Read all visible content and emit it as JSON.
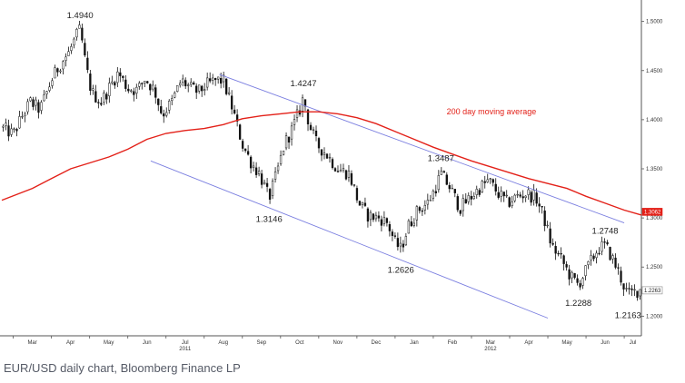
{
  "caption": "EUR/USD daily chart, Bloomberg Finance LP",
  "colors": {
    "ma": "#e32119",
    "channel": "#7b7fe0",
    "candle": "#111111",
    "axis": "#555555"
  },
  "chart_data": {
    "type": "candlestick",
    "title": "",
    "xlabel": "",
    "ylabel": "",
    "ylim": [
      1.18,
      1.52
    ],
    "y_ticks": [
      {
        "label": "1.5000",
        "value": 1.5
      },
      {
        "label": "1.4500",
        "value": 1.45
      },
      {
        "label": "1.4000",
        "value": 1.4
      },
      {
        "label": "1.3500",
        "value": 1.35
      },
      {
        "label": "1.3000",
        "value": 1.3
      },
      {
        "label": "1.2500",
        "value": 1.25
      },
      {
        "label": "1.2000",
        "value": 1.2
      }
    ],
    "x_ticks": [
      {
        "label": "Mar",
        "t": 0
      },
      {
        "label": "Apr",
        "t": 1
      },
      {
        "label": "May",
        "t": 2
      },
      {
        "label": "Jun",
        "t": 3
      },
      {
        "label": "Jul",
        "t": 4
      },
      {
        "label": "Aug",
        "t": 5
      },
      {
        "label": "Sep",
        "t": 6
      },
      {
        "label": "Oct",
        "t": 7
      },
      {
        "label": "Nov",
        "t": 8
      },
      {
        "label": "Dec",
        "t": 9
      },
      {
        "label": "Jan",
        "t": 10
      },
      {
        "label": "Feb",
        "t": 11
      },
      {
        "label": "Mar",
        "t": 12
      },
      {
        "label": "Apr",
        "t": 13
      },
      {
        "label": "May",
        "t": 14
      },
      {
        "label": "Jun",
        "t": 15
      },
      {
        "label": "Jul",
        "t": 16
      }
    ],
    "year_labels": [
      {
        "label": "2011",
        "t": 4.5
      },
      {
        "label": "2012",
        "t": 12.5
      }
    ],
    "xlim": [
      -0.3,
      16.45
    ],
    "price_path": [
      [
        -0.3,
        1.392
      ],
      [
        0.0,
        1.385
      ],
      [
        0.25,
        1.405
      ],
      [
        0.45,
        1.418
      ],
      [
        0.7,
        1.41
      ],
      [
        1.0,
        1.44
      ],
      [
        1.2,
        1.455
      ],
      [
        1.45,
        1.468
      ],
      [
        1.65,
        1.485
      ],
      [
        1.75,
        1.492
      ],
      [
        1.9,
        1.455
      ],
      [
        2.05,
        1.428
      ],
      [
        2.3,
        1.418
      ],
      [
        2.55,
        1.435
      ],
      [
        2.75,
        1.448
      ],
      [
        3.0,
        1.432
      ],
      [
        3.25,
        1.43
      ],
      [
        3.45,
        1.442
      ],
      [
        3.7,
        1.43
      ],
      [
        3.9,
        1.405
      ],
      [
        4.15,
        1.418
      ],
      [
        4.4,
        1.44
      ],
      [
        4.65,
        1.432
      ],
      [
        4.85,
        1.428
      ],
      [
        5.05,
        1.435
      ],
      [
        5.3,
        1.44
      ],
      [
        5.5,
        1.44
      ],
      [
        5.75,
        1.41
      ],
      [
        6.0,
        1.375
      ],
      [
        6.25,
        1.355
      ],
      [
        6.45,
        1.345
      ],
      [
        6.7,
        1.32
      ],
      [
        6.9,
        1.345
      ],
      [
        7.1,
        1.375
      ],
      [
        7.3,
        1.39
      ],
      [
        7.5,
        1.41
      ],
      [
        7.6,
        1.423
      ],
      [
        7.75,
        1.395
      ],
      [
        7.95,
        1.375
      ],
      [
        8.2,
        1.365
      ],
      [
        8.5,
        1.35
      ],
      [
        8.8,
        1.345
      ],
      [
        9.05,
        1.315
      ],
      [
        9.3,
        1.302
      ],
      [
        9.6,
        1.3
      ],
      [
        9.8,
        1.295
      ],
      [
        10.0,
        1.275
      ],
      [
        10.15,
        1.268
      ],
      [
        10.35,
        1.292
      ],
      [
        10.6,
        1.308
      ],
      [
        10.85,
        1.315
      ],
      [
        11.05,
        1.33
      ],
      [
        11.2,
        1.345
      ],
      [
        11.45,
        1.33
      ],
      [
        11.7,
        1.31
      ],
      [
        11.95,
        1.32
      ],
      [
        12.2,
        1.33
      ],
      [
        12.45,
        1.338
      ],
      [
        12.7,
        1.325
      ],
      [
        12.95,
        1.315
      ],
      [
        13.2,
        1.322
      ],
      [
        13.45,
        1.325
      ],
      [
        13.7,
        1.32
      ],
      [
        13.9,
        1.3
      ],
      [
        14.1,
        1.272
      ],
      [
        14.35,
        1.258
      ],
      [
        14.6,
        1.24
      ],
      [
        14.8,
        1.232
      ],
      [
        15.05,
        1.25
      ],
      [
        15.3,
        1.268
      ],
      [
        15.5,
        1.272
      ],
      [
        15.65,
        1.262
      ],
      [
        15.85,
        1.245
      ],
      [
        16.0,
        1.23
      ],
      [
        16.1,
        1.222
      ],
      [
        16.3,
        1.225
      ],
      [
        16.45,
        1.228
      ]
    ],
    "series": [
      {
        "name": "200 day moving average",
        "points": [
          [
            -0.3,
            1.318
          ],
          [
            0.5,
            1.33
          ],
          [
            1.0,
            1.34
          ],
          [
            1.5,
            1.35
          ],
          [
            2.0,
            1.356
          ],
          [
            2.5,
            1.362
          ],
          [
            3.0,
            1.37
          ],
          [
            3.5,
            1.38
          ],
          [
            4.0,
            1.386
          ],
          [
            4.5,
            1.389
          ],
          [
            5.0,
            1.391
          ],
          [
            5.5,
            1.395
          ],
          [
            6.0,
            1.401
          ],
          [
            6.5,
            1.404
          ],
          [
            7.0,
            1.406
          ],
          [
            7.5,
            1.408
          ],
          [
            8.0,
            1.408
          ],
          [
            8.5,
            1.406
          ],
          [
            9.0,
            1.402
          ],
          [
            9.5,
            1.396
          ],
          [
            10.0,
            1.388
          ],
          [
            10.5,
            1.38
          ],
          [
            11.0,
            1.372
          ],
          [
            11.5,
            1.365
          ],
          [
            12.0,
            1.358
          ],
          [
            12.5,
            1.352
          ],
          [
            13.0,
            1.346
          ],
          [
            13.5,
            1.34
          ],
          [
            14.0,
            1.335
          ],
          [
            14.5,
            1.33
          ],
          [
            15.0,
            1.322
          ],
          [
            15.5,
            1.315
          ],
          [
            16.0,
            1.308
          ],
          [
            16.45,
            1.303
          ]
        ]
      }
    ],
    "channel_lines": [
      {
        "from": [
          5.4,
          1.446
        ],
        "to": [
          16.0,
          1.295
        ]
      },
      {
        "from": [
          3.6,
          1.358
        ],
        "to": [
          14.0,
          1.198
        ]
      }
    ],
    "annotations": [
      {
        "text": "1.4940",
        "t": 1.75,
        "value": 1.494,
        "position": "above"
      },
      {
        "text": "1.4247",
        "t": 7.6,
        "value": 1.4247,
        "position": "above"
      },
      {
        "text": "1.3146",
        "t": 6.7,
        "value": 1.3146,
        "position": "below"
      },
      {
        "text": "1.3487",
        "t": 11.2,
        "value": 1.3487,
        "position": "above"
      },
      {
        "text": "1.2626",
        "t": 10.15,
        "value": 1.2626,
        "position": "below"
      },
      {
        "text": "1.2748",
        "t": 15.5,
        "value": 1.2748,
        "position": "above"
      },
      {
        "text": "1.2288",
        "t": 14.8,
        "value": 1.2288,
        "position": "below"
      },
      {
        "text": "1.2163",
        "t": 16.1,
        "value": 1.2163,
        "position": "below"
      }
    ],
    "series_label": {
      "text": "200 day moving average",
      "t": 11.35,
      "value": 1.4055
    },
    "tags": [
      {
        "text": "1.3062",
        "value": 1.3062,
        "style": "filled"
      },
      {
        "text": "1.2263",
        "value": 1.2263,
        "style": "outline"
      }
    ]
  }
}
